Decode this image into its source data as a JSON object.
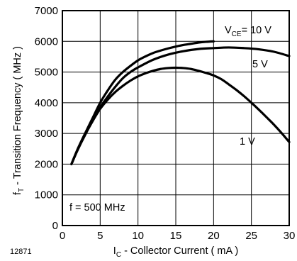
{
  "figure_id": "12871",
  "chart_data": {
    "type": "line",
    "xlabel": {
      "main": "I",
      "sub": "C",
      "rest": " - Collector Current ( mA )"
    },
    "ylabel": {
      "main": "f",
      "sub": "T",
      "rest": " - Transition Frequency  ( MHz )"
    },
    "xlim": [
      0,
      30
    ],
    "ylim": [
      0,
      7000
    ],
    "xticks": [
      "0",
      "5",
      "10",
      "15",
      "20",
      "25",
      "30"
    ],
    "yticks": [
      "0",
      "1000",
      "2000",
      "3000",
      "4000",
      "5000",
      "6000",
      "7000"
    ],
    "grid": true,
    "annotation": "f = 500 MHz",
    "series": [
      {
        "name": {
          "main": "V",
          "sub": "CE",
          "rest": "= 10 V"
        },
        "x": [
          1.2,
          2,
          3,
          4,
          5,
          6,
          7,
          8,
          9,
          10,
          11,
          12,
          13,
          14,
          15,
          16,
          17,
          18,
          19,
          20
        ],
        "y": [
          2000,
          2480,
          3000,
          3500,
          4000,
          4400,
          4750,
          5000,
          5200,
          5380,
          5510,
          5620,
          5700,
          5770,
          5830,
          5880,
          5920,
          5960,
          5985,
          6000
        ]
      },
      {
        "name": "5 V",
        "x": [
          1.2,
          2,
          3,
          4,
          5,
          6,
          7,
          8,
          9,
          10,
          12,
          14,
          16,
          18,
          20,
          22,
          24,
          26,
          28,
          30
        ],
        "y": [
          2000,
          2460,
          2950,
          3440,
          3850,
          4200,
          4520,
          4800,
          5000,
          5150,
          5400,
          5570,
          5680,
          5750,
          5780,
          5800,
          5780,
          5740,
          5660,
          5520
        ]
      },
      {
        "name": "1 V",
        "x": [
          1.2,
          2,
          3,
          4,
          5,
          6,
          7,
          8,
          9,
          10,
          11,
          12,
          13,
          14,
          15,
          16,
          17,
          18,
          19,
          20,
          21,
          22,
          23,
          24,
          25,
          26,
          27,
          28,
          29,
          30
        ],
        "y": [
          2000,
          2450,
          2950,
          3400,
          3800,
          4100,
          4350,
          4550,
          4720,
          4860,
          4960,
          5040,
          5100,
          5130,
          5140,
          5130,
          5100,
          5040,
          4970,
          4890,
          4770,
          4600,
          4420,
          4220,
          4000,
          3770,
          3530,
          3280,
          3010,
          2720
        ]
      }
    ]
  }
}
